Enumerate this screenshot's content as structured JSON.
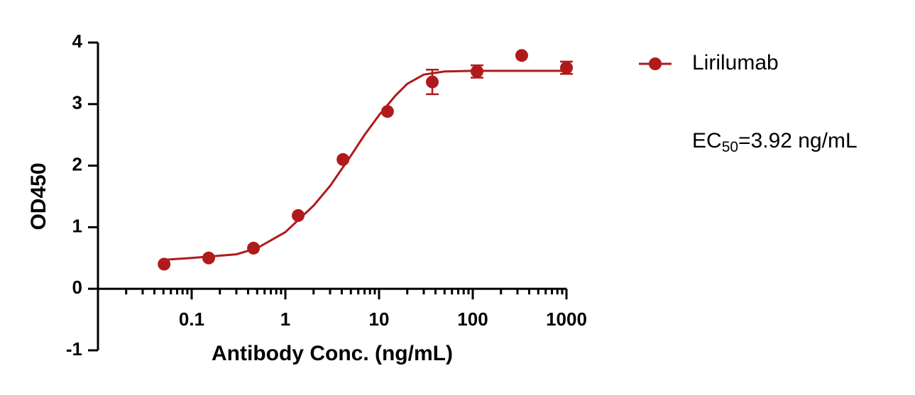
{
  "chart_data": {
    "type": "scatter",
    "x_label": "Antibody Conc. (ng/mL)",
    "y_label": "OD450",
    "log_x": true,
    "xlim": [
      0.01,
      1000
    ],
    "xticks": [
      0.1,
      1,
      10,
      100,
      1000
    ],
    "ylim": [
      -1,
      4
    ],
    "yticks": [
      -1,
      0,
      1,
      2,
      3,
      4
    ],
    "series": [
      {
        "name": "Lirilumab",
        "color": "#b01a1a",
        "x": [
          0.0508,
          0.152,
          0.457,
          1.37,
          4.12,
          12.3,
          37,
          111,
          333,
          1000
        ],
        "values": [
          0.4,
          0.5,
          0.66,
          1.19,
          2.1,
          2.88,
          3.36,
          3.53,
          3.79,
          3.59
        ],
        "errors": [
          null,
          null,
          null,
          null,
          null,
          null,
          0.2,
          0.1,
          null,
          0.1
        ]
      }
    ],
    "fit": {
      "x": [
        0.05,
        0.1,
        0.3,
        0.5,
        1,
        2,
        3,
        5,
        7,
        10,
        15,
        20,
        30,
        50,
        100,
        1000
      ],
      "values": [
        0.47,
        0.5,
        0.56,
        0.66,
        0.92,
        1.35,
        1.67,
        2.16,
        2.5,
        2.82,
        3.14,
        3.33,
        3.48,
        3.53,
        3.54,
        3.54
      ]
    },
    "annotation": {
      "main": "EC",
      "subscript": "50",
      "suffix": "=3.92 ng/mL"
    }
  }
}
